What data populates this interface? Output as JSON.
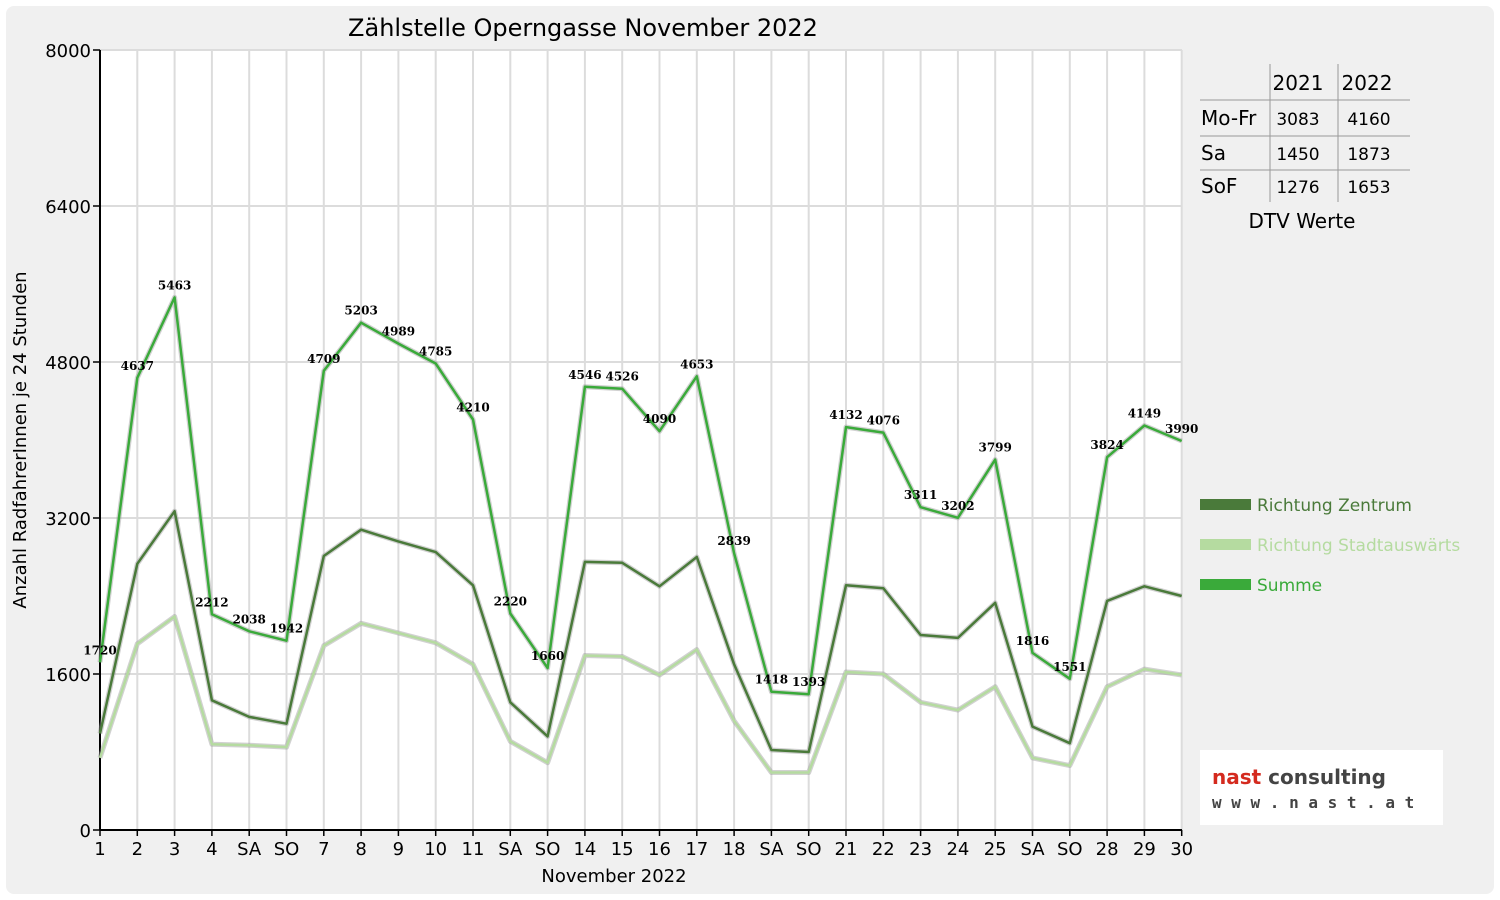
{
  "chart_data": {
    "type": "line",
    "title": "Zählstelle Operngasse November 2022",
    "xlabel": "November 2022",
    "ylabel": "Anzahl RadfahrerInnen je 24 Stunden",
    "ylim": [
      0,
      8000
    ],
    "yticks": [
      "0",
      "1600",
      "3200",
      "4800",
      "6400",
      "8000"
    ],
    "grid": true,
    "legend_position": "right",
    "categories": [
      "1",
      "2",
      "3",
      "4",
      "SA",
      "SO",
      "7",
      "8",
      "9",
      "10",
      "11",
      "SA",
      "SO",
      "14",
      "15",
      "16",
      "17",
      "18",
      "SA",
      "SO",
      "21",
      "22",
      "23",
      "24",
      "25",
      "SA",
      "SO",
      "28",
      "29",
      "30"
    ],
    "red_categories": [
      0,
      5,
      12,
      19,
      26
    ],
    "series": [
      {
        "name": "Richtung Zentrum",
        "color": "#4a7a3a",
        "values": [
          990,
          2730,
          3270,
          1330,
          1160,
          1090,
          2810,
          3080,
          2960,
          2850,
          2510,
          1310,
          960,
          2750,
          2740,
          2500,
          2800,
          1700,
          820,
          800,
          2510,
          2480,
          2000,
          1970,
          2330,
          1060,
          890,
          2350,
          2500,
          2400
        ]
      },
      {
        "name": "Richtung Stadtauswärts",
        "color": "#b5dba0",
        "values": [
          740,
          1910,
          2190,
          880,
          870,
          850,
          1890,
          2120,
          2020,
          1920,
          1700,
          910,
          690,
          1790,
          1780,
          1590,
          1850,
          1120,
          590,
          590,
          1620,
          1600,
          1310,
          1230,
          1470,
          740,
          660,
          1470,
          1650,
          1590
        ]
      },
      {
        "name": "Summe",
        "color": "#3aaa3a",
        "values": [
          1720,
          4637,
          5463,
          2212,
          2038,
          1942,
          4709,
          5203,
          4989,
          4785,
          4210,
          2220,
          1660,
          4546,
          4526,
          4090,
          4653,
          2839,
          1418,
          1393,
          4132,
          4076,
          3311,
          3202,
          3799,
          1816,
          1551,
          3824,
          4149,
          3990
        ]
      }
    ],
    "data_labels": [
      "1720",
      "4637",
      "5463",
      "2212",
      "2038",
      "1942",
      "4709",
      "5203",
      "4989",
      "4785",
      "4210",
      "2220",
      "1660",
      "4546",
      "4526",
      "4090",
      "4653",
      "2839",
      "1418",
      "1393",
      "4132",
      "4076",
      "3311",
      "3202",
      "3799",
      "1816",
      "1551",
      "3824",
      "4149",
      "3990"
    ],
    "dtv_table": {
      "caption": "DTV Werte",
      "headers": [
        "2021",
        "2022"
      ],
      "rows": [
        {
          "label": "Mo-Fr",
          "v2021": "3083",
          "v2022": "4160"
        },
        {
          "label": "Sa",
          "v2021": "1450",
          "v2022": "1873"
        },
        {
          "label": "SoF",
          "v2021": "1276",
          "v2022": "1653"
        }
      ]
    },
    "logo": {
      "name": "nast consulting",
      "url": "w w w . n a s t . a t",
      "accent": "#d42a1e"
    }
  }
}
